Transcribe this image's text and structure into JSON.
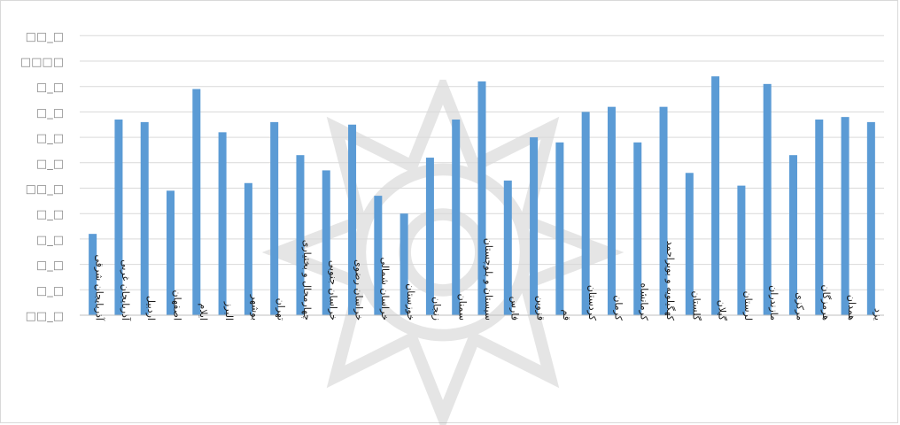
{
  "chart_data": {
    "type": "bar",
    "title": "",
    "xlabel": "",
    "ylabel": "",
    "grid": true,
    "legend": "none",
    "ylim": [
      0,
      11
    ],
    "y_tick_labels": [
      "□□_□",
      "□□□□",
      "□_□",
      "□_□",
      "□_□",
      "□_□",
      "□□_□",
      "□_□",
      "□_□",
      "□_□",
      "□_□",
      "□□_□"
    ],
    "bar_color": "#5b9bd5",
    "categories": [
      "آذربایجان شرقی",
      "آذربایجان غربی",
      "اردبیل",
      "اصفهان",
      "ایلام",
      "البرز",
      "بوشهر",
      "تهران",
      "چهارمحال و بختیاری",
      "خراسان جنوبی",
      "خراسان رضوی",
      "خراسان شمالی",
      "خوزستان",
      "زنجان",
      "سمنان",
      "سیستان و بلوچستان",
      "فارس",
      "قزوین",
      "قم",
      "کردستان",
      "کرمان",
      "کرمانشاه",
      "کهگیلویه و بویراحمد",
      "گلستان",
      "گیلان",
      "لرستان",
      "مازندران",
      "مرکزی",
      "هرمزگان",
      "همدان",
      "یزد"
    ],
    "values": [
      3.2,
      7.7,
      7.6,
      4.9,
      8.9,
      7.2,
      5.2,
      7.6,
      6.3,
      5.7,
      7.5,
      4.7,
      4.0,
      6.2,
      7.7,
      9.2,
      5.3,
      7.0,
      6.8,
      8.0,
      8.2,
      6.8,
      8.2,
      5.6,
      9.4,
      5.1,
      9.1,
      6.3,
      7.7,
      7.8,
      7.6
    ]
  }
}
